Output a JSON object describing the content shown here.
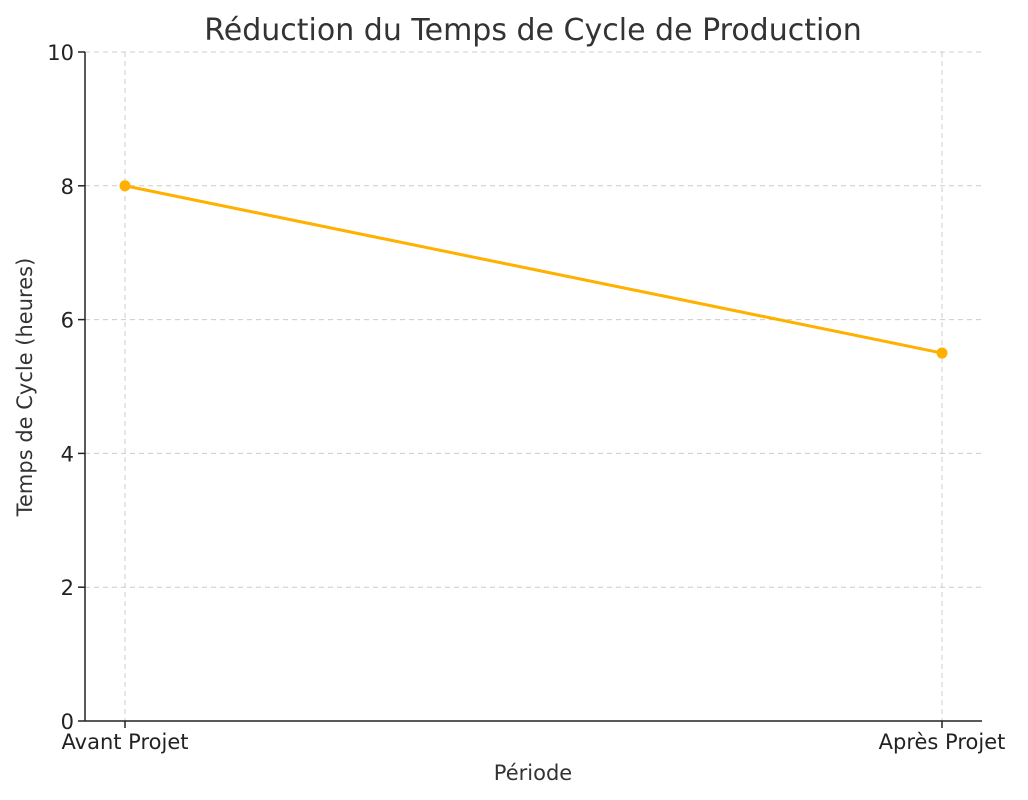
{
  "chart_data": {
    "type": "line",
    "title": "Réduction du Temps de Cycle de Production",
    "xlabel": "Période",
    "ylabel": "Temps de Cycle (heures)",
    "categories": [
      "Avant Projet",
      "Après Projet"
    ],
    "series": [
      {
        "values": [
          8,
          5.5
        ],
        "color": "#FFB000"
      }
    ],
    "ylim": [
      0,
      10
    ],
    "yticks": [
      0,
      2,
      4,
      6,
      8,
      10
    ],
    "grid": true,
    "markers": true
  }
}
